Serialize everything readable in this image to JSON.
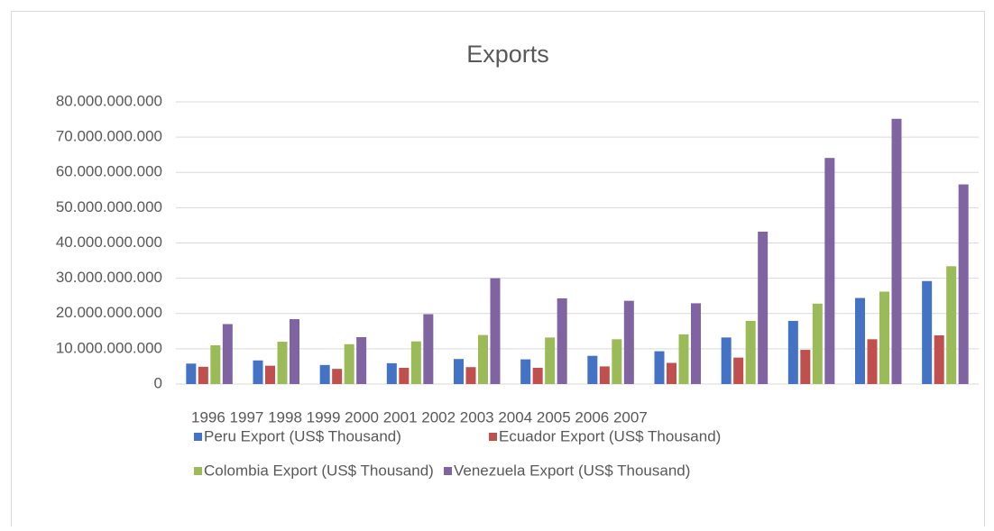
{
  "chart_data": {
    "type": "bar",
    "title": "Exports",
    "x_axis_text": "1996 1997 1998 1999 2000 2001 2002 2003 2004 2005 2006 2007",
    "categories": [
      null,
      null,
      null,
      null,
      null,
      null,
      null,
      null,
      null,
      null,
      null,
      null
    ],
    "series": [
      {
        "name": "Peru Export (US$ Thousand)",
        "color": "#4472c4",
        "values": [
          5800000000,
          6700000000,
          5400000000,
          5900000000,
          7100000000,
          7000000000,
          8000000000,
          9300000000,
          13200000000,
          17900000000,
          24400000000,
          29200000000
        ]
      },
      {
        "name": "Ecuador Export (US$ Thousand)",
        "color": "#c0504d",
        "values": [
          4900000000,
          5200000000,
          4300000000,
          4600000000,
          4800000000,
          4600000000,
          5000000000,
          6000000000,
          7500000000,
          9700000000,
          12700000000,
          13800000000
        ]
      },
      {
        "name": "Colombia  Export (US$ Thousand)",
        "color": "#9bbb59",
        "values": [
          11000000000,
          12000000000,
          11300000000,
          12100000000,
          13900000000,
          13200000000,
          12700000000,
          14100000000,
          17900000000,
          22800000000,
          26200000000,
          33400000000
        ]
      },
      {
        "name": "Venezuela Export (US$ Thousand)",
        "color": "#8064a2",
        "values": [
          17000000000,
          18400000000,
          13300000000,
          19800000000,
          30000000000,
          24300000000,
          23600000000,
          22900000000,
          43200000000,
          64100000000,
          75200000000,
          56600000000
        ]
      }
    ],
    "ylim": [
      0,
      80000000000
    ],
    "yticks": [
      0,
      {
        "value": 10000000000,
        "label": "10.000.000.000"
      },
      {
        "value": 20000000000,
        "label": "20.000.000.000"
      },
      {
        "value": 30000000000,
        "label": "30.000.000.000"
      },
      {
        "value": 40000000000,
        "label": "40.000.000.000"
      },
      {
        "value": 50000000000,
        "label": "50.000.000.000"
      },
      {
        "value": 60000000000,
        "label": "60.000.000.000"
      },
      {
        "value": 70000000000,
        "label": "70.000.000.000"
      },
      {
        "value": 80000000000,
        "label": "80.000.000.000"
      }
    ],
    "grid": true,
    "legend": "bottom"
  }
}
